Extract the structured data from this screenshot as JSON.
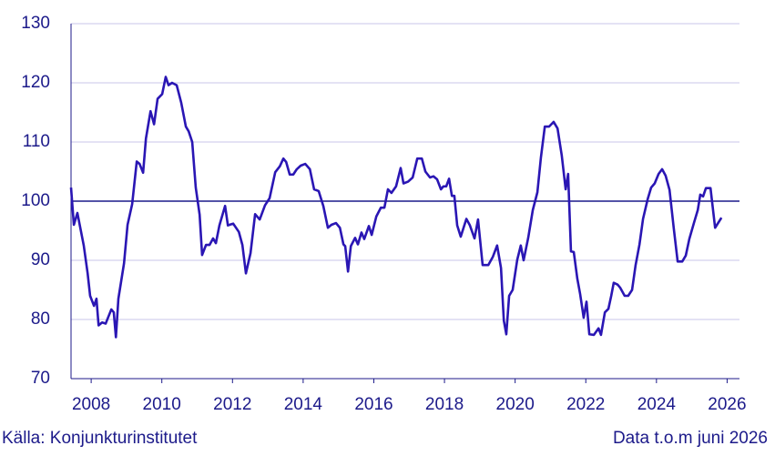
{
  "chart_data": {
    "type": "line",
    "source": "Källa: Konjunkturinstitutet",
    "note": "Data t.o.m juni 2026",
    "x": [
      2007.43,
      2007.51,
      2007.61,
      2007.79,
      2007.9,
      2007.97,
      2008.08,
      2008.15,
      2008.21,
      2008.31,
      2008.41,
      2008.57,
      2008.64,
      2008.7,
      2008.77,
      2008.93,
      2009.03,
      2009.16,
      2009.29,
      2009.37,
      2009.47,
      2009.55,
      2009.68,
      2009.78,
      2009.88,
      2010.01,
      2010.11,
      2010.19,
      2010.29,
      2010.42,
      2010.55,
      2010.68,
      2010.76,
      2010.86,
      2010.96,
      2011.07,
      2011.14,
      2011.25,
      2011.35,
      2011.45,
      2011.53,
      2011.63,
      2011.79,
      2011.87,
      2012.02,
      2012.18,
      2012.28,
      2012.38,
      2012.51,
      2012.64,
      2012.77,
      2012.92,
      2013.05,
      2013.21,
      2013.34,
      2013.44,
      2013.52,
      2013.62,
      2013.72,
      2013.82,
      2013.93,
      2014.06,
      2014.19,
      2014.31,
      2014.44,
      2014.57,
      2014.7,
      2014.8,
      2014.93,
      2015.04,
      2015.14,
      2015.19,
      2015.27,
      2015.35,
      2015.47,
      2015.55,
      2015.65,
      2015.73,
      2015.86,
      2015.94,
      2016.07,
      2016.2,
      2016.3,
      2016.4,
      2016.5,
      2016.63,
      2016.76,
      2016.84,
      2016.97,
      2017.1,
      2017.23,
      2017.36,
      2017.46,
      2017.59,
      2017.69,
      2017.79,
      2017.9,
      2017.97,
      2018.05,
      2018.13,
      2018.21,
      2018.28,
      2018.36,
      2018.46,
      2018.62,
      2018.72,
      2018.85,
      2018.95,
      2019.08,
      2019.24,
      2019.37,
      2019.49,
      2019.6,
      2019.68,
      2019.75,
      2019.83,
      2019.93,
      2020.06,
      2020.16,
      2020.24,
      2020.37,
      2020.5,
      2020.63,
      2020.73,
      2020.84,
      2020.96,
      2021.09,
      2021.2,
      2021.32,
      2021.43,
      2021.5,
      2021.58,
      2021.66,
      2021.76,
      2021.84,
      2021.94,
      2022.02,
      2022.1,
      2022.23,
      2022.36,
      2022.43,
      2022.54,
      2022.64,
      2022.72,
      2022.79,
      2022.9,
      2022.97,
      2023.1,
      2023.2,
      2023.31,
      2023.41,
      2023.52,
      2023.62,
      2023.75,
      2023.85,
      2023.95,
      2024.06,
      2024.16,
      2024.26,
      2024.37,
      2024.49,
      2024.6,
      2024.73,
      2024.83,
      2024.93,
      2025.06,
      2025.17,
      2025.24,
      2025.32,
      2025.4,
      2025.53,
      2025.66,
      2025.84
    ],
    "values": [
      102.3,
      96,
      98,
      92.5,
      87.8,
      84,
      82.3,
      83.5,
      79,
      79.5,
      79.3,
      81.7,
      81.2,
      77,
      83.5,
      89.5,
      96,
      99.5,
      106.7,
      106.3,
      104.8,
      110.6,
      115.2,
      113,
      117.3,
      118.1,
      121,
      119.6,
      120,
      119.6,
      116.6,
      112.6,
      111.8,
      110,
      102.3,
      97.7,
      90.9,
      92.6,
      92.6,
      93.7,
      92.9,
      95.9,
      99.2,
      95.9,
      96.2,
      94.8,
      92.6,
      87.8,
      91.2,
      97.8,
      96.9,
      99.3,
      100.5,
      104.9,
      105.9,
      107.2,
      106.6,
      104.5,
      104.5,
      105.4,
      106,
      106.3,
      105.4,
      102,
      101.7,
      99.2,
      95.5,
      96,
      96.3,
      95.5,
      92.7,
      92.4,
      88.1,
      92.4,
      93.8,
      92.7,
      94.7,
      93.6,
      95.8,
      94.3,
      97.4,
      98.9,
      98.9,
      102,
      101.4,
      102.5,
      105.6,
      103,
      103.3,
      104,
      107.2,
      107.2,
      105,
      104,
      104.2,
      103.7,
      102,
      102.5,
      102.5,
      103.8,
      100.9,
      100.9,
      95.9,
      94,
      97,
      95.9,
      93.7,
      96.9,
      89.2,
      89.2,
      90.6,
      92.5,
      88.7,
      79.8,
      77.5,
      84,
      85,
      90.1,
      92.5,
      90,
      93.8,
      98.5,
      101.5,
      107.4,
      112.6,
      112.6,
      113.4,
      112.3,
      107.7,
      102,
      104.6,
      91.5,
      91.4,
      86.9,
      84.3,
      80.3,
      83,
      77.5,
      77.4,
      78.5,
      77.4,
      81.2,
      81.8,
      84,
      86.2,
      85.9,
      85.4,
      84,
      84,
      85,
      89.2,
      92.7,
      97,
      100.3,
      102.3,
      103,
      104.6,
      105.4,
      104.3,
      101.9,
      95.4,
      89.8,
      89.8,
      90.8,
      93.6,
      96.3,
      98.5,
      101.1,
      100.8,
      102.2,
      102.2,
      95.5,
      97.2
    ],
    "color": "#2a16b4",
    "reference_line": 100,
    "xlim": [
      2007.43,
      2026.35
    ],
    "xticks": [
      2008,
      2010,
      2012,
      2014,
      2016,
      2018,
      2020,
      2022,
      2024,
      2026
    ],
    "ylim": [
      70,
      130
    ],
    "yticks": [
      70,
      80,
      90,
      100,
      110,
      120,
      130
    ],
    "grid": true
  }
}
